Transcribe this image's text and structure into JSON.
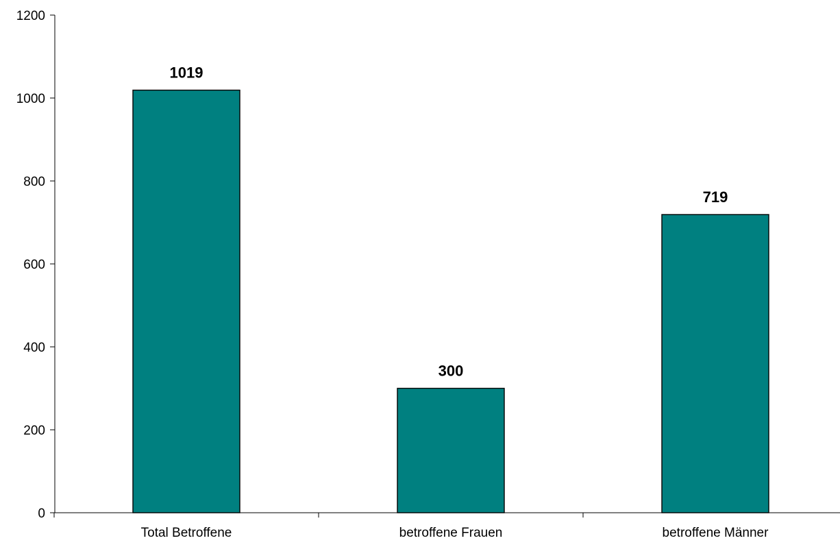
{
  "chart_data": {
    "type": "bar",
    "categories": [
      "Total Betroffene",
      "betroffene Frauen",
      "betroffene Männer"
    ],
    "values": [
      1019,
      300,
      719
    ],
    "data_labels": [
      "1019",
      "300",
      "719"
    ],
    "title": "",
    "xlabel": "",
    "ylabel": "",
    "ylim": [
      0,
      1200
    ],
    "yticks": [
      0,
      200,
      400,
      600,
      800,
      1000,
      1200
    ],
    "grid": false,
    "legend": "none",
    "bar_color": "#008080",
    "bar_edge_color": "#000000"
  }
}
